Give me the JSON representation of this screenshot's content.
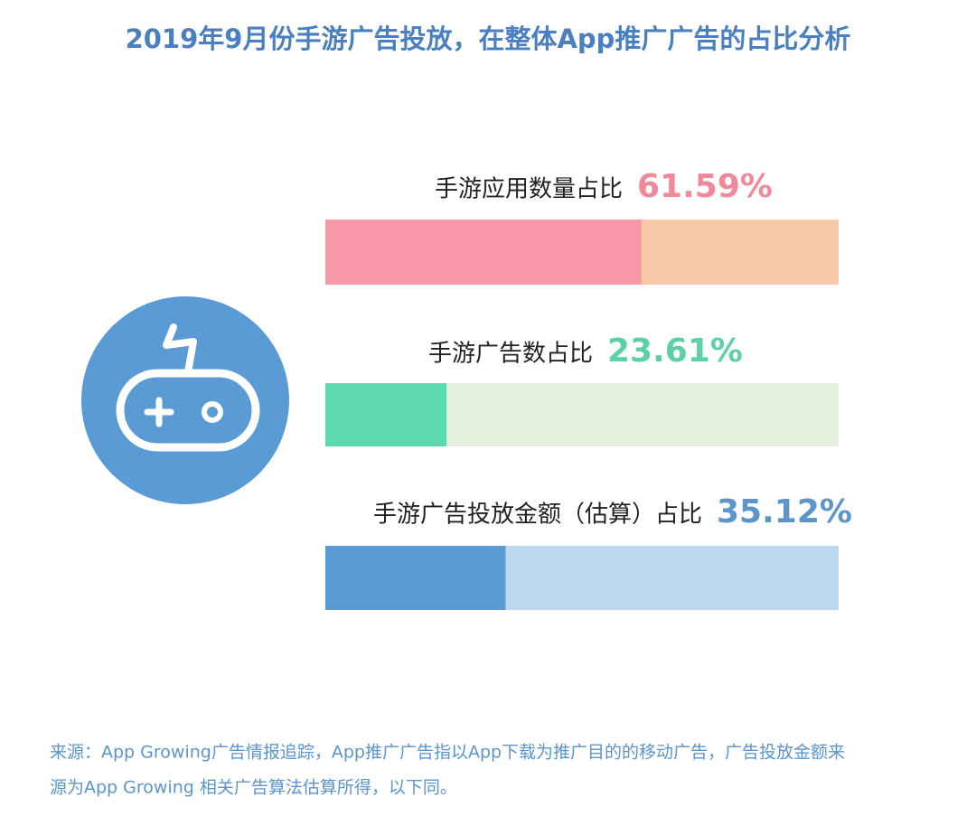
{
  "chart_data": {
    "type": "progress",
    "title": "2019年9月份手游广告投放，在整体App推广广告的占比分析",
    "categories": [
      "手游应用数量占比",
      "手游广告数占比",
      "手游广告投放金额（估算）占比"
    ],
    "values": [
      61.59,
      23.61,
      35.12
    ],
    "value_labels": [
      "61.59%",
      "23.61%",
      "35.12%"
    ],
    "colors": [
      "#f799a6",
      "#5dd9b0",
      "#5b9bd5"
    ],
    "track_colors": [
      "#f8c9a8",
      "#e3f1dc",
      "#bcd7ee"
    ],
    "label_colors": [
      "#f08a9a",
      "#5dd0a8",
      "#5b95c9"
    ],
    "xlim": [
      0,
      100
    ],
    "source": [
      "来源：App Growing广告情报追踪，App推广广告指以App下载为推广目的的移动广告，广告投放金额来",
      "源为App Growing 相关广告算法估算所得，以下同。"
    ]
  }
}
